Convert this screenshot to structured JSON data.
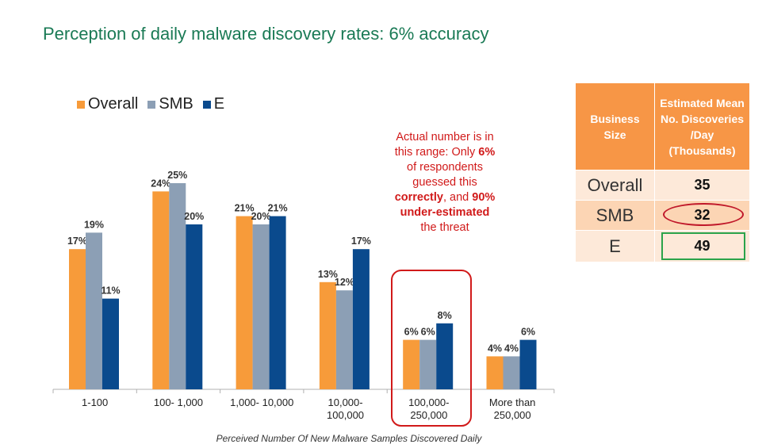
{
  "title": "Perception of daily malware discovery rates: 6% accuracy",
  "legend": [
    {
      "label": "Overall",
      "color": "#f79b3a"
    },
    {
      "label": "SMB",
      "color": "#8c9fb5"
    },
    {
      "label": "E",
      "color": "#0a4a8d"
    }
  ],
  "chart_data": {
    "type": "bar",
    "categories": [
      "1-100",
      "100- 1,000",
      "1,000- 10,000",
      "10,000-\n100,000",
      "100,000-\n250,000",
      "More than\n250,000"
    ],
    "series": [
      {
        "name": "Overall",
        "values": [
          17,
          24,
          21,
          13,
          6,
          4
        ],
        "labels": [
          "17%",
          "24%",
          "21%",
          "13%",
          "6%",
          "4%"
        ]
      },
      {
        "name": "SMB",
        "values": [
          19,
          25,
          20,
          12,
          6,
          4
        ],
        "labels": [
          "19%",
          "25%",
          "20%",
          "12%",
          "6%",
          "4%"
        ]
      },
      {
        "name": "E",
        "values": [
          11,
          20,
          21,
          17,
          8,
          6
        ],
        "labels": [
          "11%",
          "20%",
          "21%",
          "17%",
          "8%",
          "6%"
        ]
      }
    ],
    "xlabel": "Perceived Number Of New Malware Samples Discovered Daily",
    "ylabel": "",
    "ylim": [
      0,
      30
    ],
    "grid": false,
    "legend_position": "top-left"
  },
  "callout": {
    "line1": "Actual number is in",
    "line2a": "this range: Only ",
    "line2b": "6%",
    "line3": "of respondents",
    "line4": "guessed this",
    "line5a": "correctly",
    "line5b": ", and ",
    "line5c": "90%",
    "line6": "under-estimated",
    "line7": "the threat"
  },
  "table": {
    "header_col1": "Business Size",
    "header_col2": "Estimated Mean No. Discoveries /Day (Thousands)",
    "rows": [
      {
        "label": "Overall",
        "value": "35"
      },
      {
        "label": "SMB",
        "value": "32"
      },
      {
        "label": "E",
        "value": "49"
      }
    ]
  }
}
